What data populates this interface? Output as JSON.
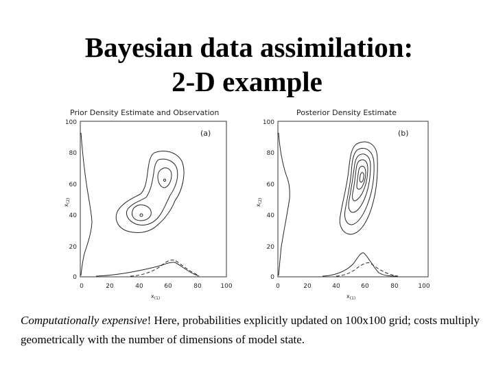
{
  "slide": {
    "title_line1": "Bayesian data assimilation:",
    "title_line2": "2-D example",
    "caption_italic": "Computationally expensive",
    "caption_rest": "! Here, probabilities explicitly updated on 100x100 grid; costs multiply geometrically with the number of dimensions of model state."
  },
  "chart_data": [
    {
      "type": "contour",
      "title": "Prior Density Estimate and Observation",
      "panel_label": "(a)",
      "xlabel": "x",
      "xlabel_sub": "(1)",
      "ylabel": "x",
      "ylabel_sub": "(2)",
      "xlim": [
        0,
        100
      ],
      "ylim": [
        0,
        100
      ],
      "x_ticks": [
        "0",
        "20",
        "40",
        "60",
        "80",
        "100"
      ],
      "y_ticks": [
        "0",
        "20",
        "40",
        "60",
        "80",
        "100"
      ],
      "modes": [
        {
          "x": 58,
          "y": 62
        },
        {
          "x": 40,
          "y": 40
        }
      ],
      "contour_levels": 3
    },
    {
      "type": "contour",
      "title": "Posterior Density Estimate",
      "panel_label": "(b)",
      "xlabel": "x",
      "xlabel_sub": "(1)",
      "ylabel": "x",
      "ylabel_sub": "(2)",
      "xlim": [
        0,
        100
      ],
      "ylim": [
        0,
        100
      ],
      "x_ticks": [
        "0",
        "20",
        "40",
        "60",
        "80",
        "100"
      ],
      "y_ticks": [
        "0",
        "20",
        "40",
        "60",
        "80",
        "100"
      ],
      "modes": [
        {
          "x": 58,
          "y": 62
        }
      ],
      "contour_levels": 6
    }
  ]
}
